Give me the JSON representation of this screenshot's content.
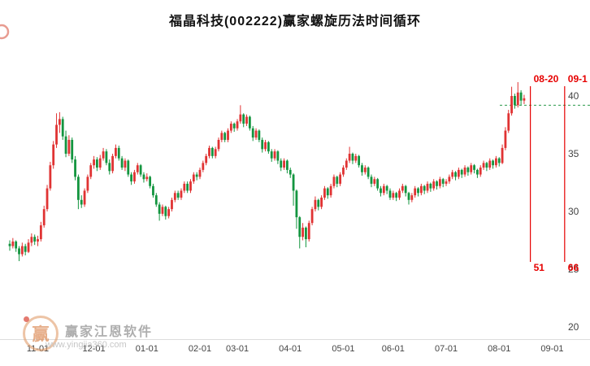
{
  "header": {
    "title": "福晶科技(002222)赢家螺旋历法时间循环"
  },
  "watermark": {
    "logo_char": "赢",
    "name": "赢家江恩软件",
    "url": "www.yingjia360.com"
  },
  "chart_data": {
    "type": "candlestick",
    "title": "福晶科技(002222)赢家螺旋历法时间循环",
    "up_color": "#e03333",
    "down_color": "#13953f",
    "grid": false,
    "legend": "none",
    "ylim": [
      19.5,
      41.6
    ],
    "ohlc_format": [
      "open",
      "high",
      "low",
      "close"
    ],
    "y_ticks": [
      {
        "label": "40",
        "price": 40
      },
      {
        "label": "35",
        "price": 35
      },
      {
        "label": "30",
        "price": 30
      },
      {
        "label": "25",
        "price": 25
      },
      {
        "label": "20",
        "price": 20
      }
    ],
    "x_ticks": [
      {
        "label": "11-01",
        "index": 9
      },
      {
        "label": "12-01",
        "index": 27
      },
      {
        "label": "01-01",
        "index": 44
      },
      {
        "label": "02-01",
        "index": 61
      },
      {
        "label": "03-01",
        "index": 73
      },
      {
        "label": "04-01",
        "index": 90
      },
      {
        "label": "05-01",
        "index": 107
      },
      {
        "label": "06-01",
        "index": 123
      },
      {
        "label": "07-01",
        "index": 140
      },
      {
        "label": "08-01",
        "index": 157
      },
      {
        "label": "09-01",
        "index": 174
      }
    ],
    "annotations": {
      "vertical_lines": [
        {
          "top_label": "08-20",
          "bottom_label": "51",
          "index": 167,
          "color": "#e60000"
        },
        {
          "top_label": "09-1",
          "bottom_label": "66",
          "index": 178,
          "color": "#e60000"
        }
      ],
      "horizontal_line": {
        "price": 39.2,
        "style": "dashed",
        "color": "#2a9a4a"
      }
    },
    "candles": [
      [
        27.2,
        27.5,
        26.6,
        27.0
      ],
      [
        27.0,
        27.7,
        26.8,
        27.4
      ],
      [
        27.4,
        27.5,
        26.5,
        26.8
      ],
      [
        26.8,
        27.0,
        25.7,
        26.3
      ],
      [
        26.3,
        27.3,
        26.1,
        27.0
      ],
      [
        27.0,
        27.2,
        26.2,
        26.5
      ],
      [
        26.5,
        27.6,
        26.4,
        27.3
      ],
      [
        27.3,
        28.1,
        27.0,
        27.8
      ],
      [
        27.8,
        28.0,
        27.1,
        27.4
      ],
      [
        27.4,
        27.9,
        27.0,
        27.6
      ],
      [
        27.6,
        29.1,
        27.4,
        28.8
      ],
      [
        28.8,
        30.5,
        28.6,
        30.2
      ],
      [
        30.2,
        32.3,
        30.0,
        32.0
      ],
      [
        32.0,
        34.3,
        31.8,
        34.0
      ],
      [
        34.0,
        36.1,
        33.7,
        35.8
      ],
      [
        35.8,
        38.5,
        35.5,
        37.5
      ],
      [
        37.5,
        38.6,
        36.8,
        38.0
      ],
      [
        38.0,
        38.2,
        36.2,
        36.5
      ],
      [
        36.5,
        37.0,
        34.7,
        35.0
      ],
      [
        35.0,
        36.6,
        34.8,
        36.2
      ],
      [
        36.2,
        36.4,
        34.2,
        34.5
      ],
      [
        34.5,
        34.8,
        32.7,
        33.0
      ],
      [
        33.0,
        33.2,
        30.2,
        31.0
      ],
      [
        31.0,
        31.4,
        30.3,
        30.6
      ],
      [
        30.6,
        32.0,
        30.4,
        31.8
      ],
      [
        31.8,
        33.2,
        31.6,
        33.0
      ],
      [
        33.0,
        34.2,
        32.8,
        34.0
      ],
      [
        34.0,
        34.8,
        33.7,
        34.5
      ],
      [
        34.5,
        34.7,
        33.5,
        33.8
      ],
      [
        33.8,
        34.9,
        33.6,
        34.6
      ],
      [
        34.6,
        35.5,
        34.4,
        35.2
      ],
      [
        35.2,
        35.4,
        34.0,
        34.2
      ],
      [
        34.2,
        34.5,
        33.2,
        33.5
      ],
      [
        33.5,
        35.0,
        33.3,
        34.8
      ],
      [
        34.8,
        35.8,
        34.6,
        35.5
      ],
      [
        35.5,
        35.7,
        34.4,
        34.6
      ],
      [
        34.6,
        34.8,
        33.6,
        33.8
      ],
      [
        33.8,
        34.6,
        33.5,
        34.4
      ],
      [
        34.4,
        34.5,
        33.0,
        33.2
      ],
      [
        33.2,
        33.4,
        32.3,
        32.6
      ],
      [
        32.6,
        33.6,
        32.4,
        33.4
      ],
      [
        33.4,
        34.2,
        33.2,
        34.0
      ],
      [
        34.0,
        34.1,
        33.0,
        33.2
      ],
      [
        33.2,
        33.4,
        32.5,
        32.8
      ],
      [
        32.8,
        33.3,
        32.6,
        33.0
      ],
      [
        33.0,
        33.1,
        32.0,
        32.2
      ],
      [
        32.2,
        32.4,
        31.2,
        31.4
      ],
      [
        31.4,
        31.6,
        30.4,
        30.6
      ],
      [
        30.6,
        30.8,
        29.2,
        29.8
      ],
      [
        29.8,
        30.6,
        29.6,
        30.4
      ],
      [
        30.4,
        30.5,
        29.3,
        29.6
      ],
      [
        29.6,
        30.4,
        29.4,
        30.2
      ],
      [
        30.2,
        31.2,
        30.0,
        31.0
      ],
      [
        31.0,
        31.8,
        30.8,
        31.6
      ],
      [
        31.6,
        31.8,
        31.0,
        31.2
      ],
      [
        31.2,
        32.0,
        31.0,
        31.8
      ],
      [
        31.8,
        32.6,
        31.6,
        32.4
      ],
      [
        32.4,
        32.6,
        31.6,
        31.8
      ],
      [
        31.8,
        32.8,
        31.6,
        32.6
      ],
      [
        32.6,
        33.4,
        32.4,
        33.2
      ],
      [
        33.2,
        33.4,
        32.7,
        33.0
      ],
      [
        33.0,
        33.8,
        32.8,
        33.6
      ],
      [
        33.6,
        34.4,
        33.4,
        34.2
      ],
      [
        34.2,
        35.0,
        34.0,
        34.8
      ],
      [
        34.8,
        35.7,
        34.6,
        35.5
      ],
      [
        35.5,
        35.6,
        34.6,
        34.8
      ],
      [
        34.8,
        35.6,
        34.6,
        35.4
      ],
      [
        35.4,
        36.4,
        35.2,
        36.2
      ],
      [
        36.2,
        37.0,
        36.0,
        36.8
      ],
      [
        36.8,
        36.9,
        36.0,
        36.2
      ],
      [
        36.2,
        37.2,
        36.0,
        37.0
      ],
      [
        37.0,
        37.8,
        36.8,
        37.6
      ],
      [
        37.6,
        37.7,
        36.9,
        37.2
      ],
      [
        37.2,
        38.0,
        37.0,
        37.8
      ],
      [
        37.8,
        39.2,
        37.6,
        38.4
      ],
      [
        38.4,
        38.5,
        37.3,
        37.6
      ],
      [
        37.6,
        38.4,
        37.4,
        38.2
      ],
      [
        38.2,
        38.3,
        37.0,
        37.2
      ],
      [
        37.2,
        37.4,
        36.1,
        36.4
      ],
      [
        36.4,
        37.2,
        36.2,
        37.0
      ],
      [
        37.0,
        37.1,
        36.0,
        36.2
      ],
      [
        36.2,
        36.4,
        35.1,
        35.4
      ],
      [
        35.4,
        36.2,
        35.2,
        36.0
      ],
      [
        36.0,
        36.1,
        35.0,
        35.2
      ],
      [
        35.2,
        35.4,
        34.3,
        34.6
      ],
      [
        34.6,
        35.4,
        34.4,
        35.2
      ],
      [
        35.2,
        35.3,
        34.1,
        34.4
      ],
      [
        34.4,
        34.6,
        33.5,
        33.8
      ],
      [
        33.8,
        34.6,
        33.6,
        34.4
      ],
      [
        34.4,
        34.5,
        33.3,
        33.6
      ],
      [
        33.6,
        33.8,
        32.9,
        33.2
      ],
      [
        33.2,
        33.3,
        30.5,
        31.8
      ],
      [
        31.8,
        31.9,
        28.5,
        29.5
      ],
      [
        29.5,
        29.6,
        26.8,
        27.8
      ],
      [
        27.8,
        29.0,
        27.5,
        28.6
      ],
      [
        28.6,
        28.7,
        26.9,
        27.6
      ],
      [
        27.6,
        29.2,
        27.4,
        29.0
      ],
      [
        29.0,
        30.4,
        28.8,
        30.2
      ],
      [
        30.2,
        31.3,
        30.0,
        31.0
      ],
      [
        31.0,
        31.1,
        30.1,
        30.4
      ],
      [
        30.4,
        31.4,
        30.2,
        31.2
      ],
      [
        31.2,
        32.2,
        31.0,
        32.0
      ],
      [
        32.0,
        32.1,
        31.1,
        31.4
      ],
      [
        31.4,
        32.4,
        31.2,
        32.2
      ],
      [
        32.2,
        33.2,
        32.0,
        33.0
      ],
      [
        33.0,
        33.1,
        32.1,
        32.4
      ],
      [
        32.4,
        33.4,
        32.2,
        33.2
      ],
      [
        33.2,
        34.0,
        33.0,
        33.8
      ],
      [
        33.8,
        34.6,
        33.6,
        34.4
      ],
      [
        34.4,
        35.6,
        34.2,
        35.0
      ],
      [
        35.0,
        35.1,
        34.1,
        34.4
      ],
      [
        34.4,
        35.0,
        34.2,
        34.8
      ],
      [
        34.8,
        34.9,
        33.8,
        34.0
      ],
      [
        34.0,
        34.2,
        33.1,
        33.4
      ],
      [
        33.4,
        34.0,
        33.2,
        33.8
      ],
      [
        33.8,
        33.9,
        32.8,
        33.0
      ],
      [
        33.0,
        33.2,
        32.1,
        32.4
      ],
      [
        32.4,
        33.0,
        32.2,
        32.8
      ],
      [
        32.8,
        32.9,
        31.8,
        32.0
      ],
      [
        32.0,
        32.2,
        31.3,
        31.6
      ],
      [
        31.6,
        32.4,
        31.4,
        32.2
      ],
      [
        32.2,
        32.3,
        31.5,
        31.8
      ],
      [
        31.8,
        32.0,
        31.0,
        31.2
      ],
      [
        31.2,
        31.8,
        31.0,
        31.6
      ],
      [
        31.6,
        31.7,
        30.9,
        31.2
      ],
      [
        31.2,
        32.0,
        31.0,
        31.8
      ],
      [
        31.8,
        32.4,
        31.6,
        32.2
      ],
      [
        32.2,
        32.3,
        31.3,
        31.6
      ],
      [
        31.6,
        31.7,
        30.6,
        31.0
      ],
      [
        31.0,
        31.6,
        30.8,
        31.4
      ],
      [
        31.4,
        32.2,
        31.2,
        32.0
      ],
      [
        32.0,
        32.1,
        31.3,
        31.6
      ],
      [
        31.6,
        32.4,
        31.4,
        32.2
      ],
      [
        32.2,
        32.3,
        31.5,
        31.8
      ],
      [
        31.8,
        32.6,
        31.6,
        32.4
      ],
      [
        32.4,
        32.5,
        31.7,
        32.0
      ],
      [
        32.0,
        32.8,
        31.8,
        32.6
      ],
      [
        32.6,
        32.7,
        31.9,
        32.2
      ],
      [
        32.2,
        33.0,
        32.0,
        32.8
      ],
      [
        32.8,
        32.9,
        32.1,
        32.4
      ],
      [
        32.4,
        32.8,
        32.2,
        32.6
      ],
      [
        32.6,
        33.2,
        32.4,
        33.0
      ],
      [
        33.0,
        33.6,
        32.8,
        33.4
      ],
      [
        33.4,
        33.5,
        32.7,
        33.0
      ],
      [
        33.0,
        33.8,
        32.8,
        33.6
      ],
      [
        33.6,
        33.7,
        32.9,
        33.2
      ],
      [
        33.2,
        34.0,
        33.0,
        33.8
      ],
      [
        33.8,
        33.9,
        33.1,
        33.4
      ],
      [
        33.4,
        34.2,
        33.2,
        34.0
      ],
      [
        34.0,
        34.1,
        33.3,
        33.6
      ],
      [
        33.6,
        33.7,
        32.9,
        33.2
      ],
      [
        33.2,
        34.0,
        33.0,
        33.8
      ],
      [
        33.8,
        34.4,
        33.6,
        34.2
      ],
      [
        34.2,
        34.3,
        33.5,
        33.8
      ],
      [
        33.8,
        34.6,
        33.6,
        34.4
      ],
      [
        34.4,
        34.5,
        33.7,
        34.0
      ],
      [
        34.0,
        34.8,
        33.8,
        34.6
      ],
      [
        34.6,
        34.7,
        33.9,
        34.2
      ],
      [
        34.2,
        35.8,
        34.1,
        35.5
      ],
      [
        35.5,
        37.3,
        35.3,
        37.0
      ],
      [
        37.0,
        38.8,
        36.8,
        38.5
      ],
      [
        38.5,
        40.8,
        38.3,
        40.0
      ],
      [
        40.0,
        40.2,
        38.9,
        39.2
      ],
      [
        39.2,
        41.2,
        39.0,
        40.3
      ],
      [
        40.3,
        40.5,
        39.2,
        39.6
      ],
      [
        39.6,
        40.1,
        39.3,
        39.8
      ]
    ]
  }
}
